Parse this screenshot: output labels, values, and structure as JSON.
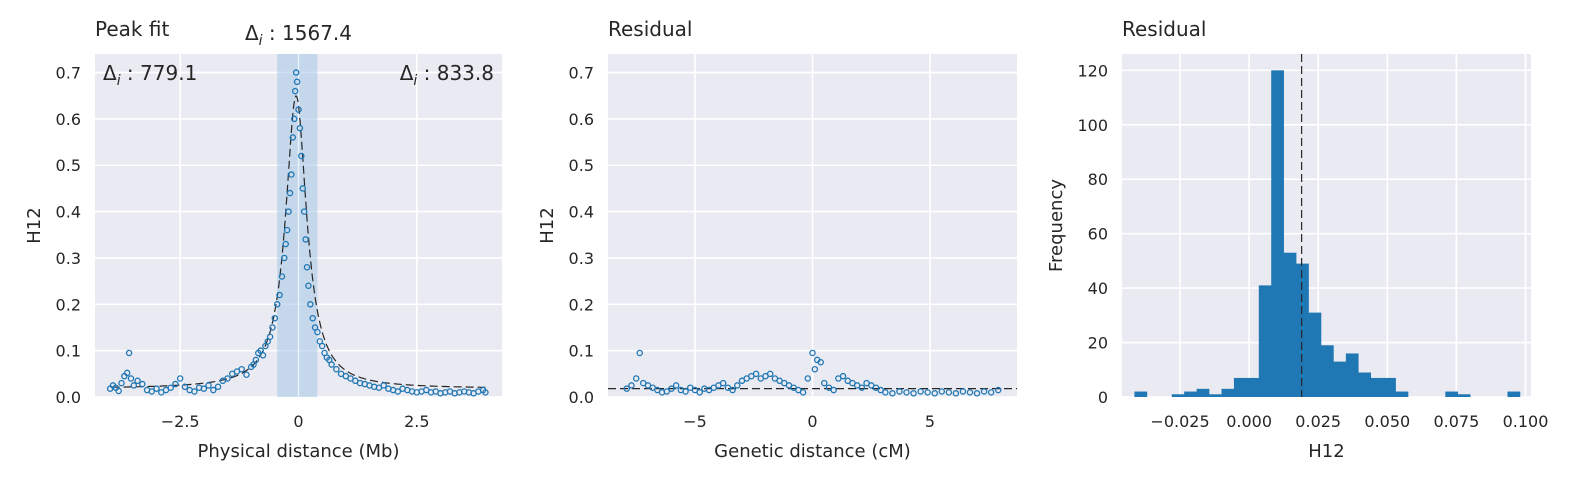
{
  "chart_data": [
    {
      "type": "scatter",
      "title": "Peak fit",
      "xlabel": "Physical distance (Mb)",
      "ylabel": "H12",
      "xlim": [
        -4.3,
        4.3
      ],
      "ylim": [
        0,
        0.74
      ],
      "xticks": [
        -2.5,
        0,
        2.5
      ],
      "xtick_labels": [
        "−2.5",
        "0",
        "2.5"
      ],
      "yticks": [
        0.0,
        0.1,
        0.2,
        0.3,
        0.4,
        0.5,
        0.6,
        0.7
      ],
      "ytick_labels": [
        "0.0",
        "0.1",
        "0.2",
        "0.3",
        "0.4",
        "0.5",
        "0.6",
        "0.7"
      ],
      "grid": true,
      "shaded_region": {
        "x0": -0.45,
        "x1": 0.4
      },
      "annotations": {
        "left": "779.1",
        "center": "1567.4",
        "right": "833.8",
        "prefix": "Δ",
        "subscript": "i",
        "separator": " : "
      },
      "fit_curve": {
        "peak": 0.65,
        "center": -0.05,
        "baseline": 0.018,
        "width": 0.27
      },
      "points": [
        [
          -3.98,
          0.018
        ],
        [
          -3.92,
          0.025
        ],
        [
          -3.86,
          0.02
        ],
        [
          -3.8,
          0.013
        ],
        [
          -3.74,
          0.03
        ],
        [
          -3.68,
          0.045
        ],
        [
          -3.62,
          0.052
        ],
        [
          -3.58,
          0.095
        ],
        [
          -3.54,
          0.04
        ],
        [
          -3.48,
          0.025
        ],
        [
          -3.4,
          0.035
        ],
        [
          -3.3,
          0.028
        ],
        [
          -3.2,
          0.015
        ],
        [
          -3.1,
          0.012
        ],
        [
          -3.0,
          0.018
        ],
        [
          -2.9,
          0.01
        ],
        [
          -2.8,
          0.015
        ],
        [
          -2.7,
          0.02
        ],
        [
          -2.6,
          0.028
        ],
        [
          -2.5,
          0.04
        ],
        [
          -2.4,
          0.022
        ],
        [
          -2.3,
          0.015
        ],
        [
          -2.2,
          0.012
        ],
        [
          -2.1,
          0.02
        ],
        [
          -2.0,
          0.018
        ],
        [
          -1.9,
          0.025
        ],
        [
          -1.8,
          0.015
        ],
        [
          -1.7,
          0.022
        ],
        [
          -1.6,
          0.035
        ],
        [
          -1.5,
          0.04
        ],
        [
          -1.4,
          0.05
        ],
        [
          -1.3,
          0.055
        ],
        [
          -1.2,
          0.06
        ],
        [
          -1.1,
          0.048
        ],
        [
          -1.0,
          0.065
        ],
        [
          -0.95,
          0.07
        ],
        [
          -0.9,
          0.08
        ],
        [
          -0.85,
          0.095
        ],
        [
          -0.8,
          0.1
        ],
        [
          -0.75,
          0.09
        ],
        [
          -0.7,
          0.11
        ],
        [
          -0.65,
          0.12
        ],
        [
          -0.6,
          0.13
        ],
        [
          -0.55,
          0.15
        ],
        [
          -0.5,
          0.17
        ],
        [
          -0.45,
          0.2
        ],
        [
          -0.4,
          0.22
        ],
        [
          -0.35,
          0.26
        ],
        [
          -0.3,
          0.3
        ],
        [
          -0.27,
          0.33
        ],
        [
          -0.24,
          0.36
        ],
        [
          -0.21,
          0.4
        ],
        [
          -0.18,
          0.44
        ],
        [
          -0.15,
          0.48
        ],
        [
          -0.12,
          0.56
        ],
        [
          -0.09,
          0.6
        ],
        [
          -0.07,
          0.66
        ],
        [
          -0.05,
          0.7
        ],
        [
          -0.03,
          0.68
        ],
        [
          0.0,
          0.62
        ],
        [
          0.03,
          0.58
        ],
        [
          0.06,
          0.52
        ],
        [
          0.09,
          0.45
        ],
        [
          0.12,
          0.4
        ],
        [
          0.15,
          0.34
        ],
        [
          0.18,
          0.28
        ],
        [
          0.21,
          0.24
        ],
        [
          0.25,
          0.2
        ],
        [
          0.3,
          0.17
        ],
        [
          0.35,
          0.15
        ],
        [
          0.4,
          0.14
        ],
        [
          0.45,
          0.12
        ],
        [
          0.5,
          0.11
        ],
        [
          0.55,
          0.095
        ],
        [
          0.6,
          0.085
        ],
        [
          0.65,
          0.08
        ],
        [
          0.7,
          0.07
        ],
        [
          0.8,
          0.06
        ],
        [
          0.9,
          0.05
        ],
        [
          1.0,
          0.045
        ],
        [
          1.1,
          0.04
        ],
        [
          1.2,
          0.035
        ],
        [
          1.3,
          0.03
        ],
        [
          1.4,
          0.028
        ],
        [
          1.5,
          0.025
        ],
        [
          1.6,
          0.022
        ],
        [
          1.7,
          0.02
        ],
        [
          1.8,
          0.025
        ],
        [
          1.9,
          0.018
        ],
        [
          2.0,
          0.015
        ],
        [
          2.1,
          0.012
        ],
        [
          2.2,
          0.018
        ],
        [
          2.3,
          0.015
        ],
        [
          2.4,
          0.012
        ],
        [
          2.5,
          0.01
        ],
        [
          2.6,
          0.012
        ],
        [
          2.7,
          0.015
        ],
        [
          2.8,
          0.01
        ],
        [
          2.9,
          0.012
        ],
        [
          3.0,
          0.008
        ],
        [
          3.1,
          0.01
        ],
        [
          3.2,
          0.012
        ],
        [
          3.3,
          0.008
        ],
        [
          3.4,
          0.01
        ],
        [
          3.5,
          0.012
        ],
        [
          3.6,
          0.01
        ],
        [
          3.7,
          0.008
        ],
        [
          3.8,
          0.012
        ],
        [
          3.9,
          0.015
        ],
        [
          3.95,
          0.01
        ]
      ]
    },
    {
      "type": "scatter",
      "title": "Residual",
      "xlabel": "Genetic distance (cM)",
      "ylabel": "H12",
      "xlim": [
        -8.7,
        8.7
      ],
      "ylim": [
        0,
        0.74
      ],
      "xticks": [
        -5,
        0,
        5
      ],
      "xtick_labels": [
        "−5",
        "0",
        "5"
      ],
      "yticks": [
        0.0,
        0.1,
        0.2,
        0.3,
        0.4,
        0.5,
        0.6,
        0.7
      ],
      "ytick_labels": [
        "0.0",
        "0.1",
        "0.2",
        "0.3",
        "0.4",
        "0.5",
        "0.6",
        "0.7"
      ],
      "grid": true,
      "baseline": 0.018,
      "points": [
        [
          -7.9,
          0.018
        ],
        [
          -7.7,
          0.025
        ],
        [
          -7.5,
          0.04
        ],
        [
          -7.35,
          0.095
        ],
        [
          -7.2,
          0.03
        ],
        [
          -7.0,
          0.025
        ],
        [
          -6.8,
          0.02
        ],
        [
          -6.6,
          0.015
        ],
        [
          -6.4,
          0.01
        ],
        [
          -6.2,
          0.012
        ],
        [
          -6.0,
          0.018
        ],
        [
          -5.8,
          0.025
        ],
        [
          -5.6,
          0.015
        ],
        [
          -5.4,
          0.012
        ],
        [
          -5.2,
          0.02
        ],
        [
          -5.0,
          0.015
        ],
        [
          -4.8,
          0.01
        ],
        [
          -4.6,
          0.018
        ],
        [
          -4.4,
          0.015
        ],
        [
          -4.2,
          0.02
        ],
        [
          -4.0,
          0.025
        ],
        [
          -3.8,
          0.03
        ],
        [
          -3.6,
          0.02
        ],
        [
          -3.4,
          0.015
        ],
        [
          -3.2,
          0.025
        ],
        [
          -3.0,
          0.035
        ],
        [
          -2.8,
          0.04
        ],
        [
          -2.6,
          0.045
        ],
        [
          -2.4,
          0.05
        ],
        [
          -2.2,
          0.04
        ],
        [
          -2.0,
          0.045
        ],
        [
          -1.8,
          0.05
        ],
        [
          -1.6,
          0.04
        ],
        [
          -1.4,
          0.035
        ],
        [
          -1.2,
          0.03
        ],
        [
          -1.0,
          0.025
        ],
        [
          -0.8,
          0.02
        ],
        [
          -0.6,
          0.015
        ],
        [
          -0.4,
          0.01
        ],
        [
          -0.2,
          0.04
        ],
        [
          0.0,
          0.095
        ],
        [
          0.1,
          0.06
        ],
        [
          0.2,
          0.08
        ],
        [
          0.35,
          0.075
        ],
        [
          0.5,
          0.03
        ],
        [
          0.7,
          0.02
        ],
        [
          0.9,
          0.015
        ],
        [
          1.1,
          0.04
        ],
        [
          1.3,
          0.045
        ],
        [
          1.5,
          0.035
        ],
        [
          1.7,
          0.03
        ],
        [
          1.9,
          0.025
        ],
        [
          2.1,
          0.02
        ],
        [
          2.3,
          0.03
        ],
        [
          2.5,
          0.025
        ],
        [
          2.7,
          0.02
        ],
        [
          2.9,
          0.015
        ],
        [
          3.1,
          0.01
        ],
        [
          3.4,
          0.008
        ],
        [
          3.7,
          0.012
        ],
        [
          4.0,
          0.01
        ],
        [
          4.3,
          0.008
        ],
        [
          4.6,
          0.012
        ],
        [
          4.9,
          0.01
        ],
        [
          5.2,
          0.008
        ],
        [
          5.5,
          0.012
        ],
        [
          5.8,
          0.01
        ],
        [
          6.1,
          0.008
        ],
        [
          6.4,
          0.012
        ],
        [
          6.7,
          0.01
        ],
        [
          7.0,
          0.008
        ],
        [
          7.3,
          0.012
        ],
        [
          7.6,
          0.01
        ],
        [
          7.9,
          0.015
        ]
      ]
    },
    {
      "type": "bar",
      "subtype": "histogram",
      "title": "Residual",
      "xlabel": "H12",
      "ylabel": "Frequency",
      "xlim": [
        -0.046,
        0.102
      ],
      "ylim": [
        0,
        126
      ],
      "xticks": [
        -0.025,
        0.0,
        0.025,
        0.05,
        0.075,
        0.1
      ],
      "xtick_labels": [
        "−0.025",
        "0.000",
        "0.025",
        "0.050",
        "0.075",
        "0.100"
      ],
      "yticks": [
        0,
        20,
        40,
        60,
        80,
        100,
        120
      ],
      "ytick_labels": [
        "0",
        "20",
        "40",
        "60",
        "80",
        "100",
        "120"
      ],
      "grid": true,
      "vline": 0.019,
      "bin_width": 0.0045,
      "bins": [
        [
          -0.0415,
          2
        ],
        [
          -0.037,
          0
        ],
        [
          -0.0325,
          0
        ],
        [
          -0.028,
          1
        ],
        [
          -0.0235,
          2
        ],
        [
          -0.019,
          3
        ],
        [
          -0.0145,
          1
        ],
        [
          -0.01,
          3
        ],
        [
          -0.0055,
          7
        ],
        [
          -0.001,
          7
        ],
        [
          0.0035,
          41
        ],
        [
          0.008,
          120
        ],
        [
          0.0125,
          53
        ],
        [
          0.017,
          49
        ],
        [
          0.0215,
          31
        ],
        [
          0.026,
          19
        ],
        [
          0.0305,
          13
        ],
        [
          0.035,
          16
        ],
        [
          0.0395,
          9
        ],
        [
          0.044,
          7
        ],
        [
          0.0485,
          7
        ],
        [
          0.053,
          2
        ],
        [
          0.0575,
          0
        ],
        [
          0.062,
          0
        ],
        [
          0.0665,
          0
        ],
        [
          0.071,
          2
        ],
        [
          0.0755,
          1
        ],
        [
          0.08,
          0
        ],
        [
          0.0845,
          0
        ],
        [
          0.089,
          0
        ],
        [
          0.0935,
          2
        ]
      ]
    }
  ],
  "colors": {
    "marker": "#1f77b4",
    "bar": "#1f77b4",
    "shade": "#a6c6e6",
    "background": "#eaeaf2",
    "grid": "#ffffff",
    "line": "#262626"
  }
}
